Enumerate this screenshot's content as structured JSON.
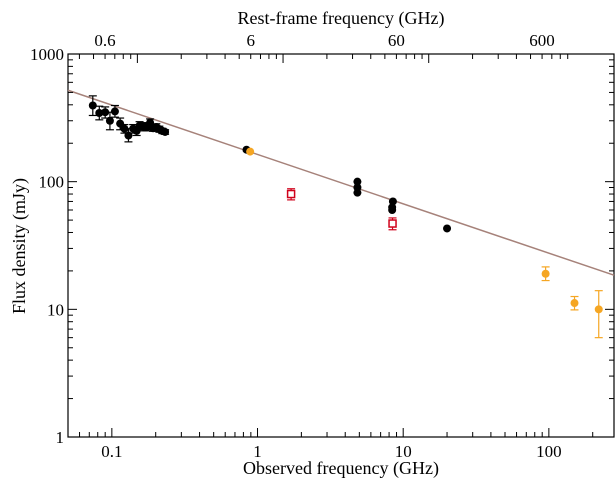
{
  "chart_data": {
    "type": "scatter",
    "title": "",
    "xlabel": "Observed frequency (GHz)",
    "x2label": "Rest-frame frequency (GHz)",
    "ylabel": "Flux density (mJy)",
    "xscale": "log",
    "yscale": "log",
    "xlim": [
      0.05,
      280
    ],
    "ylim": [
      1,
      1000
    ],
    "x_ticks": [
      {
        "value": 0.1,
        "label": "0.1"
      },
      {
        "value": 1,
        "label": "1"
      },
      {
        "value": 10,
        "label": "10"
      },
      {
        "value": 100,
        "label": "100"
      }
    ],
    "y_ticks": [
      {
        "value": 1,
        "label": "1"
      },
      {
        "value": 10,
        "label": "10"
      },
      {
        "value": 100,
        "label": "100"
      },
      {
        "value": 1000,
        "label": "1000"
      }
    ],
    "x2_ticks": [
      {
        "value": 0.0898,
        "label": "0.6"
      },
      {
        "value": 0.898,
        "label": "6"
      },
      {
        "value": 8.98,
        "label": "60"
      },
      {
        "value": 89.8,
        "label": "600"
      }
    ],
    "grid": false,
    "legend": "none",
    "fit_line": {
      "color": "#a6827a",
      "points": [
        {
          "x": 0.05,
          "y": 520
        },
        {
          "x": 280,
          "y": 18.5
        }
      ]
    },
    "series": [
      {
        "marker": "filled-circle",
        "color": "#000000",
        "points": [
          {
            "x": 0.074,
            "y": 395,
            "err_lo": 330,
            "err_hi": 470
          },
          {
            "x": 0.082,
            "y": 345,
            "err_lo": 305,
            "err_hi": 390
          },
          {
            "x": 0.09,
            "y": 350,
            "err_lo": 315,
            "err_hi": 385
          },
          {
            "x": 0.097,
            "y": 300,
            "err_lo": 255,
            "err_hi": 350
          },
          {
            "x": 0.105,
            "y": 355,
            "err_lo": 320,
            "err_hi": 395
          },
          {
            "x": 0.114,
            "y": 285,
            "err_lo": 255,
            "err_hi": 315
          },
          {
            "x": 0.122,
            "y": 260,
            "err_lo": 240,
            "err_hi": 280
          },
          {
            "x": 0.13,
            "y": 230,
            "err_lo": 205,
            "err_hi": 260
          },
          {
            "x": 0.14,
            "y": 260,
            "err_lo": 240,
            "err_hi": 280
          },
          {
            "x": 0.148,
            "y": 250,
            "err_lo": 230,
            "err_hi": 270
          },
          {
            "x": 0.155,
            "y": 275,
            "err_lo": 255,
            "err_hi": 295
          },
          {
            "x": 0.165,
            "y": 270,
            "err_lo": 250,
            "err_hi": 290
          },
          {
            "x": 0.174,
            "y": 268,
            "err_lo": 250,
            "err_hi": 285
          },
          {
            "x": 0.183,
            "y": 290,
            "err_lo": 270,
            "err_hi": 310
          },
          {
            "x": 0.192,
            "y": 262,
            "err_lo": 248,
            "err_hi": 276
          },
          {
            "x": 0.202,
            "y": 268,
            "err_lo": 252,
            "err_hi": 284
          },
          {
            "x": 0.212,
            "y": 258,
            "err_lo": 244,
            "err_hi": 272
          },
          {
            "x": 0.222,
            "y": 250,
            "err_lo": 238,
            "err_hi": 262
          },
          {
            "x": 0.232,
            "y": 245,
            "err_lo": 235,
            "err_hi": 255
          },
          {
            "x": 0.84,
            "y": 178
          },
          {
            "x": 4.85,
            "y": 82
          },
          {
            "x": 4.85,
            "y": 90
          },
          {
            "x": 4.85,
            "y": 100
          },
          {
            "x": 8.4,
            "y": 60
          },
          {
            "x": 8.4,
            "y": 63
          },
          {
            "x": 8.5,
            "y": 70
          },
          {
            "x": 20,
            "y": 43
          }
        ]
      },
      {
        "marker": "filled-circle",
        "color": "#f5a623",
        "points": [
          {
            "x": 0.89,
            "y": 172
          },
          {
            "x": 95,
            "y": 19,
            "err_lo": 16.8,
            "err_hi": 21.5
          },
          {
            "x": 150,
            "y": 11.2,
            "err_lo": 9.9,
            "err_hi": 12.6
          },
          {
            "x": 220,
            "y": 10,
            "err_lo": 6,
            "err_hi": 14
          }
        ]
      },
      {
        "marker": "open-square",
        "color": "#d0021b",
        "points": [
          {
            "x": 1.7,
            "y": 80,
            "err_lo": 72,
            "err_hi": 88
          },
          {
            "x": 8.45,
            "y": 47,
            "err_lo": 42,
            "err_hi": 52
          }
        ]
      }
    ]
  }
}
